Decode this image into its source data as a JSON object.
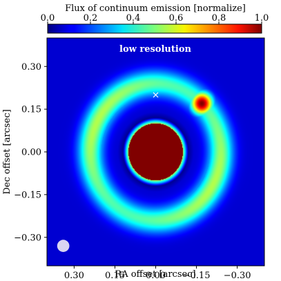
{
  "chart_data": {
    "type": "heatmap",
    "title": "",
    "colorbar": {
      "label": "Flux of continuum emission [normalize]",
      "range": [
        0.0,
        1.0
      ],
      "ticks": [
        "0.0",
        "0.2",
        "0.4",
        "0.6",
        "0.8",
        "1.0"
      ],
      "colormap": "jet",
      "position": "top"
    },
    "annotation": "low resolution",
    "xlabel": "RA offset [arcsec]",
    "ylabel": "Dec offset [arcsec]",
    "xlim": [
      0.4,
      -0.4
    ],
    "ylim": [
      -0.4,
      0.4
    ],
    "xticks": [
      0.3,
      0.15,
      0.0,
      -0.15,
      -0.3
    ],
    "xtick_labels": [
      "0.30",
      "0.15",
      "0.00",
      "−0.15",
      "−0.30"
    ],
    "yticks": [
      0.3,
      0.15,
      0.0,
      -0.15,
      -0.3
    ],
    "ytick_labels": [
      "0.30",
      "0.15",
      "0.00",
      "−0.15",
      "−0.30"
    ],
    "features": {
      "background_level": 0.08,
      "inner_disk": {
        "radius_arcsec": 0.1,
        "value": 1.0,
        "edge_value": 0.55
      },
      "gap": {
        "inner_arcsec": 0.12,
        "outer_arcsec": 0.2,
        "value": 0.02
      },
      "outer_ring": {
        "peak_radius_arcsec": 0.24,
        "peak_value": 0.5,
        "width_arcsec": 0.045
      },
      "hotspot": {
        "x_arcsec": -0.17,
        "y_arcsec": 0.17,
        "peak_value": 1.0
      },
      "marker": {
        "symbol": "x",
        "x_arcsec": 0.0,
        "y_arcsec": 0.2,
        "color": "#ffffff"
      },
      "beam": {
        "x_arcsec": 0.34,
        "y_arcsec": -0.33,
        "diameter_arcsec": 0.045,
        "color": "#d8d4f2"
      }
    }
  }
}
